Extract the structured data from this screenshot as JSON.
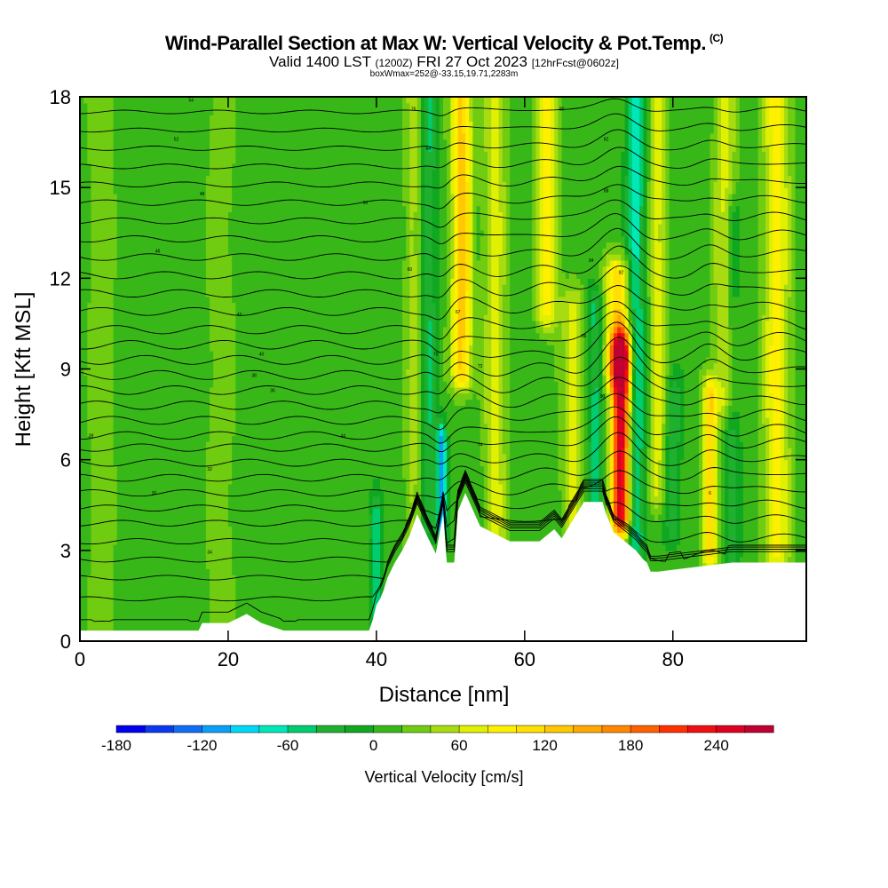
{
  "header": {
    "title": "Wind-Parallel Section at Max W: Vertical Velocity & Pot.Temp.",
    "copyright": "(C)",
    "valid_prefix": "Valid 1400 LST",
    "valid_utc": "(1200Z)",
    "valid_date": "FRI 27 Oct 2023",
    "forecast": "[12hrFcst@0602z]",
    "box_info": "boxWmax=252@-33.15,19.71,2283m"
  },
  "chart_data": {
    "type": "heatmap",
    "xlabel": "Distance [nm]",
    "ylabel": "Height [Kft MSL]",
    "xlim": [
      0,
      98
    ],
    "ylim": [
      0,
      18
    ],
    "x_ticks": [
      0,
      20,
      40,
      60,
      80
    ],
    "y_ticks": [
      0,
      3,
      6,
      9,
      12,
      15,
      18
    ],
    "colorbar": {
      "label": "Vertical Velocity [cm/s]",
      "min": -180,
      "step": 20,
      "tick_labels": [
        -180,
        -120,
        -60,
        0,
        60,
        120,
        180,
        240
      ],
      "colors": [
        "#0000ee",
        "#0a3af0",
        "#0f6ef5",
        "#0aa0f8",
        "#00d8f8",
        "#00e8b8",
        "#00cc70",
        "#20b030",
        "#10a820",
        "#38b818",
        "#70cc10",
        "#a8dc10",
        "#e0f000",
        "#fff000",
        "#ffe000",
        "#ffc800",
        "#ffa800",
        "#ff8800",
        "#ff6000",
        "#ff3000",
        "#ee1010",
        "#dd0020",
        "#c00030"
      ]
    },
    "terrain_profile": {
      "x": [
        0,
        16,
        16.5,
        20,
        22.5,
        24.5,
        27.5,
        39,
        39.5,
        40,
        40.5,
        41,
        41.5,
        42.5,
        43.5,
        44.5,
        45.5,
        47,
        48,
        49,
        49.5,
        50.5,
        51,
        52,
        54,
        58,
        62,
        63,
        64,
        65,
        66,
        67,
        68,
        70.5,
        71,
        72,
        74,
        75,
        76,
        76.5,
        77,
        78,
        88,
        98
      ],
      "height_kft": [
        0.35,
        0.35,
        0.6,
        0.6,
        0.9,
        0.6,
        0.35,
        0.35,
        0.7,
        1.2,
        1.4,
        1.7,
        2.1,
        2.6,
        3.0,
        3.5,
        4.2,
        3.4,
        2.9,
        4.2,
        2.6,
        2.6,
        4.3,
        4.9,
        3.8,
        3.3,
        3.3,
        3.5,
        3.7,
        3.4,
        3.8,
        4.2,
        4.6,
        4.6,
        4.2,
        3.6,
        3.2,
        3.0,
        2.7,
        2.6,
        2.3,
        2.3,
        2.6,
        2.6
      ]
    },
    "vertical_velocity_features": [
      {
        "x": 3,
        "w_cm_s": 25,
        "width_nm": 2,
        "z_kft": [
          0,
          18
        ]
      },
      {
        "x": 19,
        "w_cm_s": 25,
        "width_nm": 2,
        "z_kft": [
          0,
          18
        ]
      },
      {
        "x": 40,
        "w_cm_s": -60,
        "width_nm": 0.8,
        "z_kft": [
          1,
          4
        ]
      },
      {
        "x": 45,
        "w_cm_s": 40,
        "width_nm": 1.2,
        "z_kft": [
          0,
          18
        ]
      },
      {
        "x": 47,
        "w_cm_s": -50,
        "width_nm": 1,
        "z_kft": [
          4,
          18
        ]
      },
      {
        "x": 48.8,
        "w_cm_s": -120,
        "width_nm": 0.6,
        "z_kft": [
          4,
          6.5
        ]
      },
      {
        "x": 51.5,
        "w_cm_s": 120,
        "width_nm": 1.4,
        "z_kft": [
          9,
          18
        ]
      },
      {
        "x": 56,
        "w_cm_s": 60,
        "width_nm": 1.5,
        "z_kft": [
          0,
          18
        ]
      },
      {
        "x": 63,
        "w_cm_s": 80,
        "width_nm": 1.5,
        "z_kft": [
          11,
          18
        ]
      },
      {
        "x": 66.5,
        "w_cm_s": 60,
        "width_nm": 1.5,
        "z_kft": [
          4,
          11
        ]
      },
      {
        "x": 69.5,
        "w_cm_s": -60,
        "width_nm": 1,
        "z_kft": [
          4,
          11
        ]
      },
      {
        "x": 73,
        "w_cm_s": 252,
        "width_nm": 1.3,
        "z_kft": [
          4.2,
          9.5
        ]
      },
      {
        "x": 72.6,
        "w_cm_s": 110,
        "width_nm": 1.8,
        "z_kft": [
          9,
          12
        ]
      },
      {
        "x": 75,
        "w_cm_s": -80,
        "width_nm": 1.2,
        "z_kft": [
          3.5,
          18
        ]
      },
      {
        "x": 78,
        "w_cm_s": 60,
        "width_nm": 1.2,
        "z_kft": [
          5,
          18
        ]
      },
      {
        "x": 80,
        "w_cm_s": -50,
        "width_nm": 1,
        "z_kft": [
          4,
          8
        ]
      },
      {
        "x": 85,
        "w_cm_s": 110,
        "width_nm": 1,
        "z_kft": [
          3,
          8
        ]
      },
      {
        "x": 87,
        "w_cm_s": 60,
        "width_nm": 1.5,
        "z_kft": [
          8,
          18
        ]
      },
      {
        "x": 88,
        "w_cm_s": -40,
        "width_nm": 1,
        "z_kft": [
          3,
          14
        ]
      },
      {
        "x": 94,
        "w_cm_s": 80,
        "width_nm": 1.8,
        "z_kft": [
          3,
          18
        ]
      }
    ],
    "theta_contours": {
      "base_kft": [
        0.6,
        1.4,
        2.1,
        2.7,
        3.3,
        3.9,
        4.4,
        4.9,
        5.4,
        5.9,
        6.4,
        6.8,
        7.3,
        7.8,
        8.3,
        8.8,
        9.3,
        9.8,
        10.3,
        10.9,
        11.5,
        12.1,
        12.7,
        13.3,
        13.9,
        14.5,
        15.1,
        15.7,
        16.3,
        16.9,
        17.5
      ],
      "labels": [
        {
          "text": "28",
          "x": 1.5,
          "z_kft": 6.8
        },
        {
          "text": "30",
          "x": 10,
          "z_kft": 4.9
        },
        {
          "text": "32",
          "x": 17.5,
          "z_kft": 5.7
        },
        {
          "text": "34",
          "x": 17.5,
          "z_kft": 2.95
        },
        {
          "text": "36",
          "x": 26,
          "z_kft": 8.3
        },
        {
          "text": "38",
          "x": 23.5,
          "z_kft": 8.8
        },
        {
          "text": "40",
          "x": 24.5,
          "z_kft": 9.5
        },
        {
          "text": "42",
          "x": 21.5,
          "z_kft": 10.8
        },
        {
          "text": "44",
          "x": 35.5,
          "z_kft": 6.8
        },
        {
          "text": "46",
          "x": 10.5,
          "z_kft": 12.9
        },
        {
          "text": "48",
          "x": 16.5,
          "z_kft": 14.8
        },
        {
          "text": "50",
          "x": 38.5,
          "z_kft": 14.5
        },
        {
          "text": "52",
          "x": 13,
          "z_kft": 16.6
        },
        {
          "text": "54",
          "x": 15,
          "z_kft": 17.9
        },
        {
          "text": "60",
          "x": 44.5,
          "z_kft": 12.3
        },
        {
          "text": "64",
          "x": 47,
          "z_kft": 16.3
        },
        {
          "text": "67",
          "x": 51,
          "z_kft": 10.9
        },
        {
          "text": "70",
          "x": 48,
          "z_kft": 9.5
        },
        {
          "text": "72",
          "x": 54,
          "z_kft": 9.1
        },
        {
          "text": "74",
          "x": 54,
          "z_kft": 6.5
        },
        {
          "text": "76",
          "x": 45,
          "z_kft": 17.6
        },
        {
          "text": "80",
          "x": 65,
          "z_kft": 17.6
        },
        {
          "text": "82",
          "x": 71,
          "z_kft": 16.6
        },
        {
          "text": "84",
          "x": 69,
          "z_kft": 12.6
        },
        {
          "text": "86",
          "x": 68,
          "z_kft": 10.1
        },
        {
          "text": "88",
          "x": 71,
          "z_kft": 14.9
        },
        {
          "text": "90",
          "x": 70.5,
          "z_kft": 8.1
        },
        {
          "text": "92",
          "x": 73,
          "z_kft": 12.2
        },
        {
          "text": "6",
          "x": 85,
          "z_kft": 4.9
        }
      ]
    }
  }
}
